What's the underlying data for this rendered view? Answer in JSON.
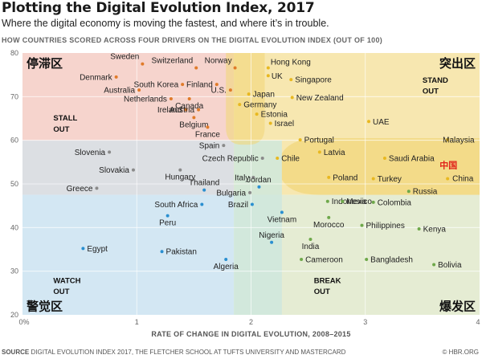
{
  "title": "Plotting the Digital Evolution Index, 2017",
  "subtitle": "Where the digital economy is moving the fastest, and where it’s in trouble.",
  "caption": "HOW COUNTRIES SCORED ACROSS FOUR DRIVERS ON THE DIGITAL EVOLUTION INDEX (OUT OF 100)",
  "source_label": "SOURCE",
  "source_text": "DIGITAL EVOLUTION INDEX 2017, THE FLETCHER SCHOOL AT TUFTS UNIVERSITY AND MASTERCARD",
  "copyright": "© HBR.ORG",
  "colors": {
    "stall_out": "#f6d4cd",
    "stand_out": "#f7e7b0",
    "stand_out_strong": "#f2d77c",
    "watch_out": "#d3e7f3",
    "break_out": "#e5ecd3",
    "grey_band": "#dcdfe3",
    "mid_band": "#cfe7dd",
    "dot_orange": "#e07b2a",
    "dot_grey": "#8a8a8a",
    "dot_blue": "#2a8fd0",
    "dot_green": "#6ea84a",
    "dot_yellow": "#e8b820",
    "china_red": "#e0221a"
  },
  "chart_data": {
    "type": "scatter",
    "title": "Plotting the Digital Evolution Index, 2017",
    "xlabel": "RATE OF CHANGE IN DIGITAL EVOLUTION, 2008–2015",
    "ylabel": "",
    "xlim": [
      0,
      4
    ],
    "ylim": [
      20,
      80
    ],
    "x_ticks": [
      "0%",
      "1",
      "2",
      "3",
      "4"
    ],
    "y_ticks": [
      "20",
      "30",
      "40",
      "50",
      "60",
      "70",
      "80"
    ],
    "grid": true,
    "quadrants": {
      "stall_out": {
        "label_line1": "STALL",
        "label_line2": "OUT",
        "label_cn": "停滞区"
      },
      "stand_out": {
        "label_line1": "STAND",
        "label_line2": "OUT",
        "label_cn": "突出区"
      },
      "watch_out": {
        "label_line1": "WATCH",
        "label_line2": "OUT",
        "label_cn": "警觉区"
      },
      "break_out": {
        "label_line1": "BREAK",
        "label_line2": "OUT",
        "label_cn": "爆发区"
      }
    },
    "china_cn_label": "中国",
    "points": [
      {
        "name": "Sweden",
        "x": 1.05,
        "y": 77.5,
        "group": "stall"
      },
      {
        "name": "Switzerland",
        "x": 1.52,
        "y": 76.6,
        "group": "stall"
      },
      {
        "name": "Norway",
        "x": 1.86,
        "y": 76.6,
        "group": "stall"
      },
      {
        "name": "Hong Kong",
        "x": 2.15,
        "y": 76.6,
        "group": "stand"
      },
      {
        "name": "Denmark",
        "x": 0.82,
        "y": 74.5,
        "group": "stall"
      },
      {
        "name": "UK",
        "x": 2.15,
        "y": 74.8,
        "group": "stand"
      },
      {
        "name": "Singapore",
        "x": 2.35,
        "y": 73.9,
        "group": "stand"
      },
      {
        "name": "South Korea",
        "x": 1.4,
        "y": 72.8,
        "group": "stall"
      },
      {
        "name": "Finland",
        "x": 1.7,
        "y": 72.8,
        "group": "stall"
      },
      {
        "name": "Australia",
        "x": 1.02,
        "y": 71.5,
        "group": "stall"
      },
      {
        "name": "U.S.",
        "x": 1.82,
        "y": 71.5,
        "group": "stall"
      },
      {
        "name": "Japan",
        "x": 1.98,
        "y": 70.6,
        "group": "stand"
      },
      {
        "name": "New Zealand",
        "x": 2.36,
        "y": 69.8,
        "group": "stand"
      },
      {
        "name": "Netherlands",
        "x": 1.3,
        "y": 69.5,
        "group": "stall"
      },
      {
        "name": "Canada",
        "x": 1.46,
        "y": 69.5,
        "group": "stall"
      },
      {
        "name": "Germany",
        "x": 1.9,
        "y": 68.2,
        "group": "stand"
      },
      {
        "name": "Ireland",
        "x": 1.43,
        "y": 67.0,
        "group": "stall"
      },
      {
        "name": "Austria",
        "x": 1.54,
        "y": 67.0,
        "group": "stall"
      },
      {
        "name": "Estonia",
        "x": 2.05,
        "y": 66.0,
        "group": "stand"
      },
      {
        "name": "UAE",
        "x": 3.03,
        "y": 64.3,
        "group": "stand"
      },
      {
        "name": "Belgium",
        "x": 1.5,
        "y": 65.2,
        "group": "stall"
      },
      {
        "name": "Israel",
        "x": 2.17,
        "y": 63.9,
        "group": "stand"
      },
      {
        "name": "France",
        "x": 1.62,
        "y": 63.0,
        "group": "stall"
      },
      {
        "name": "Portugal",
        "x": 2.43,
        "y": 60.1,
        "group": "stand"
      },
      {
        "name": "Malaysia",
        "x": 3.72,
        "y": 60.1,
        "group": "stand"
      },
      {
        "name": "Spain",
        "x": 1.76,
        "y": 58.8,
        "group": "grey"
      },
      {
        "name": "Slovenia",
        "x": 0.76,
        "y": 57.3,
        "group": "grey"
      },
      {
        "name": "Latvia",
        "x": 2.6,
        "y": 57.3,
        "group": "stand"
      },
      {
        "name": "Czech Republic",
        "x": 2.1,
        "y": 55.9,
        "group": "grey"
      },
      {
        "name": "Chile",
        "x": 2.23,
        "y": 55.9,
        "group": "stand"
      },
      {
        "name": "Saudi Arabia",
        "x": 3.17,
        "y": 55.9,
        "group": "stand"
      },
      {
        "name": "Hungary",
        "x": 1.38,
        "y": 53.2,
        "group": "grey"
      },
      {
        "name": "Slovakia",
        "x": 0.97,
        "y": 53.2,
        "group": "grey"
      },
      {
        "name": "Italy",
        "x": 2.02,
        "y": 51.5,
        "group": "grey"
      },
      {
        "name": "Poland",
        "x": 2.68,
        "y": 51.5,
        "group": "stand"
      },
      {
        "name": "Turkey",
        "x": 3.07,
        "y": 51.2,
        "group": "stand"
      },
      {
        "name": "China",
        "x": 3.72,
        "y": 51.2,
        "group": "stand"
      },
      {
        "name": "Jordan",
        "x": 2.07,
        "y": 49.3,
        "group": "mid"
      },
      {
        "name": "Greece",
        "x": 0.65,
        "y": 49.0,
        "group": "grey"
      },
      {
        "name": "Thailand",
        "x": 1.59,
        "y": 48.6,
        "group": "blue"
      },
      {
        "name": "Bulgaria",
        "x": 1.99,
        "y": 48.0,
        "group": "grey"
      },
      {
        "name": "Russia",
        "x": 3.38,
        "y": 48.3,
        "group": "green"
      },
      {
        "name": "Indonesia",
        "x": 2.67,
        "y": 46.0,
        "group": "green"
      },
      {
        "name": "Mexico",
        "x": 2.8,
        "y": 46.0,
        "group": "green"
      },
      {
        "name": "Colombia",
        "x": 3.07,
        "y": 45.8,
        "group": "green"
      },
      {
        "name": "Brazil",
        "x": 2.01,
        "y": 45.3,
        "group": "mid"
      },
      {
        "name": "South Africa",
        "x": 1.57,
        "y": 45.3,
        "group": "blue"
      },
      {
        "name": "Vietnam",
        "x": 2.27,
        "y": 43.5,
        "group": "mid"
      },
      {
        "name": "Peru",
        "x": 1.27,
        "y": 42.7,
        "group": "blue"
      },
      {
        "name": "Morocco",
        "x": 2.68,
        "y": 42.3,
        "group": "green"
      },
      {
        "name": "Philippines",
        "x": 2.97,
        "y": 40.5,
        "group": "green"
      },
      {
        "name": "Kenya",
        "x": 3.47,
        "y": 39.7,
        "group": "green"
      },
      {
        "name": "India",
        "x": 2.52,
        "y": 37.3,
        "group": "green"
      },
      {
        "name": "Nigeria",
        "x": 2.18,
        "y": 36.6,
        "group": "mid"
      },
      {
        "name": "Egypt",
        "x": 0.53,
        "y": 35.2,
        "group": "blue"
      },
      {
        "name": "Pakistan",
        "x": 1.22,
        "y": 34.5,
        "group": "blue"
      },
      {
        "name": "Cameroon",
        "x": 2.44,
        "y": 32.7,
        "group": "green"
      },
      {
        "name": "Bangladesh",
        "x": 3.01,
        "y": 32.7,
        "group": "green"
      },
      {
        "name": "Bolivia",
        "x": 3.6,
        "y": 31.5,
        "group": "green"
      },
      {
        "name": "Algeria",
        "x": 1.78,
        "y": 32.7,
        "group": "mid"
      }
    ]
  }
}
